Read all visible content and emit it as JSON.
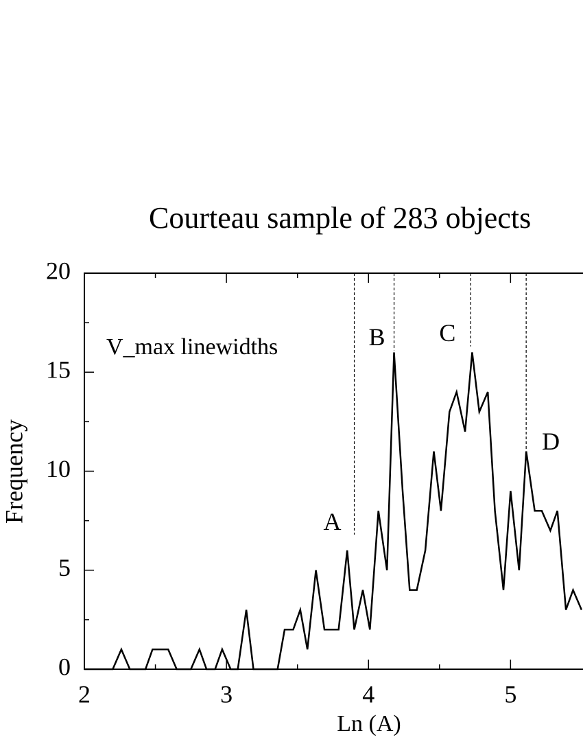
{
  "chart_data": {
    "type": "line",
    "title": "Courteau sample of 283 objects",
    "xlabel": "Ln (A)",
    "ylabel": "Frequency",
    "annotation": "V_max  linewidths",
    "x": [
      2.0,
      2.2,
      2.26,
      2.32,
      2.43,
      2.48,
      2.59,
      2.65,
      2.75,
      2.81,
      2.86,
      2.92,
      2.97,
      3.03,
      3.08,
      3.14,
      3.19,
      3.36,
      3.41,
      3.47,
      3.52,
      3.57,
      3.63,
      3.69,
      3.79,
      3.85,
      3.9,
      3.96,
      4.01,
      4.07,
      4.13,
      4.18,
      4.24,
      4.29,
      4.34,
      4.4,
      4.46,
      4.51,
      4.57,
      4.62,
      4.68,
      4.73,
      4.78,
      4.84,
      4.89,
      4.95,
      5.0,
      5.06,
      5.11,
      5.17,
      5.22,
      5.28,
      5.33,
      5.39,
      5.44,
      5.5
    ],
    "values": [
      0,
      0,
      1,
      0,
      0,
      1,
      1,
      0,
      0,
      1,
      0,
      0,
      1,
      0,
      0,
      3,
      0,
      0,
      2,
      2,
      3,
      1,
      5,
      2,
      2,
      6,
      2,
      4,
      2,
      8,
      5,
      16,
      9,
      4,
      4,
      6,
      11,
      8,
      13,
      14,
      12,
      16,
      13,
      14,
      8,
      4,
      9,
      5,
      11,
      8,
      8,
      7,
      8,
      3,
      4,
      3
    ],
    "color": "#000000",
    "xlim": [
      2,
      5.51
    ],
    "ylim": [
      0,
      20
    ],
    "xticks": [
      2,
      3,
      4,
      5
    ],
    "yticks": [
      0,
      5,
      10,
      15,
      20
    ],
    "xminorticks": [
      2.5,
      3.5,
      4.5
    ],
    "yminorticks": [
      2.5,
      7.5,
      12.5,
      17.5
    ],
    "markers": [
      {
        "label": "A",
        "x": 3.9,
        "y_end": 6.8
      },
      {
        "label": "B",
        "x": 4.18,
        "y_end": 16.1
      },
      {
        "label": "C",
        "x": 4.72,
        "y_end": 16.3
      },
      {
        "label": "D",
        "x": 5.11,
        "y_end": 11.1
      }
    ]
  }
}
